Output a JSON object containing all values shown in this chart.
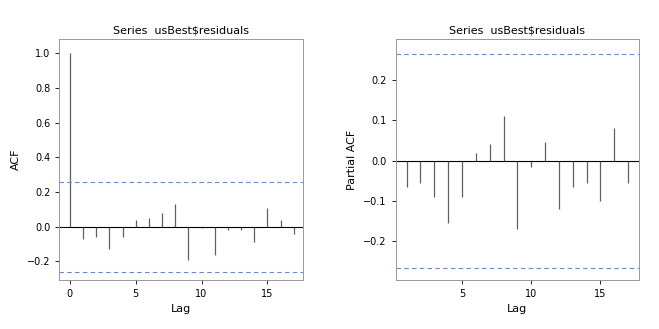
{
  "title": "Series  usBest$residuals",
  "acf_values": [
    1.0,
    -0.07,
    -0.06,
    -0.13,
    -0.06,
    0.04,
    0.05,
    0.08,
    0.13,
    -0.19,
    -0.01,
    -0.16,
    -0.02,
    -0.02,
    -0.09,
    0.11,
    0.04,
    -0.04
  ],
  "pacf_values": [
    -0.065,
    -0.055,
    -0.09,
    -0.155,
    -0.09,
    0.02,
    0.04,
    0.11,
    -0.17,
    -0.015,
    0.045,
    -0.12,
    -0.065,
    -0.055,
    -0.1,
    0.08,
    -0.055
  ],
  "acf_ci": 0.261,
  "pacf_ci_upper": 0.265,
  "pacf_ci_lower": -0.265,
  "acf_ylim": [
    -0.305,
    1.08
  ],
  "pacf_ylim": [
    -0.295,
    0.3
  ],
  "acf_yticks": [
    -0.2,
    0.0,
    0.2,
    0.4,
    0.6,
    0.8,
    1.0
  ],
  "pacf_yticks": [
    -0.2,
    -0.1,
    0.0,
    0.1,
    0.2
  ],
  "n_lags_acf": 18,
  "n_lags_pacf": 17,
  "ci_color": "#6688CC",
  "bar_color": "#606060",
  "zero_line_color": "black",
  "background_color": "white",
  "xlabel": "Lag",
  "acf_ylabel": "ACF",
  "pacf_ylabel": "Partial ACF",
  "title_fontsize": 8,
  "axis_label_fontsize": 8,
  "tick_fontsize": 7,
  "spine_color": "#999999"
}
